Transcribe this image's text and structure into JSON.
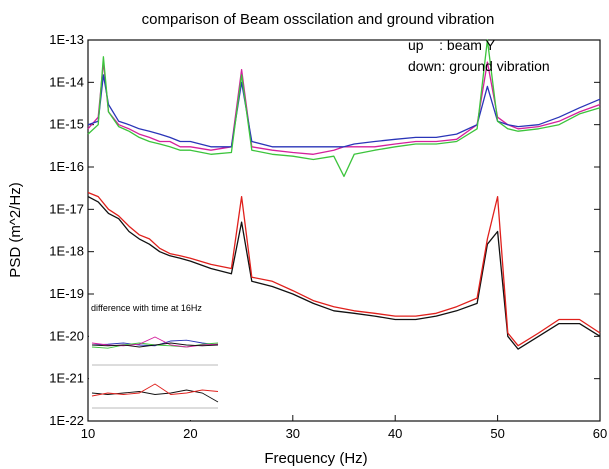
{
  "chart_data": {
    "type": "line",
    "title": "comparison of Beam osscilation and ground vibration",
    "xlabel": "Frequency (Hz)",
    "ylabel": "PSD (m^2/Hz)",
    "xlim": [
      10,
      60
    ],
    "ylim_log10": [
      -22,
      -13
    ],
    "y_scale": "log",
    "x_ticks": [
      10,
      20,
      30,
      40,
      50,
      60
    ],
    "x_tick_labels": [
      "10",
      "20",
      "30",
      "40",
      "50",
      "60"
    ],
    "y_tick_labels": [
      "1E-22",
      "1E-21",
      "1E-20",
      "1E-19",
      "1E-18",
      "1E-17",
      "1E-16",
      "1E-15",
      "1E-14",
      "1E-13"
    ],
    "legend_notes": [
      "up    : beam Y",
      "down: ground vibration"
    ],
    "grid": false,
    "series": [
      {
        "color": "#d4209c",
        "group": "up",
        "x": [
          10,
          11,
          11.5,
          12,
          13,
          14,
          15,
          16,
          17,
          18,
          19,
          20,
          22,
          24,
          25,
          26,
          28,
          30,
          32,
          34,
          35,
          36,
          38,
          40,
          42,
          44,
          46,
          48,
          49,
          50,
          51,
          52,
          54,
          56,
          58,
          60
        ],
        "y": [
          8e-16,
          1.5e-15,
          3e-14,
          2e-15,
          1e-15,
          8e-16,
          6e-16,
          5e-16,
          4e-16,
          4e-16,
          3e-16,
          3e-16,
          2.5e-16,
          3e-16,
          2e-14,
          3e-16,
          2.5e-16,
          2.2e-16,
          2e-16,
          2.5e-16,
          3e-16,
          3e-16,
          3e-16,
          3.5e-16,
          4e-16,
          4e-16,
          4.5e-16,
          1e-15,
          3e-14,
          1.5e-15,
          1e-15,
          8e-16,
          9e-16,
          1.2e-15,
          2e-15,
          3e-15
        ]
      },
      {
        "color": "#2a35b8",
        "group": "up",
        "x": [
          10,
          11,
          11.5,
          12,
          13,
          14,
          15,
          16,
          17,
          18,
          19,
          20,
          22,
          24,
          25,
          26,
          28,
          30,
          32,
          34,
          35,
          36,
          38,
          40,
          42,
          44,
          46,
          48,
          49,
          50,
          51,
          52,
          54,
          56,
          58,
          60
        ],
        "y": [
          1e-15,
          1.2e-15,
          1.5e-14,
          3e-15,
          1.2e-15,
          1e-15,
          8e-16,
          7e-16,
          6e-16,
          5e-16,
          4e-16,
          4e-16,
          3e-16,
          3e-16,
          1e-14,
          4e-16,
          3e-16,
          3e-16,
          3e-16,
          3e-16,
          3e-16,
          3.5e-16,
          4e-16,
          4.5e-16,
          5e-16,
          5e-16,
          6e-16,
          1e-15,
          8e-15,
          1.2e-15,
          1e-15,
          9e-16,
          1e-15,
          1.5e-15,
          2.5e-15,
          4e-15
        ]
      },
      {
        "color": "#3cc43c",
        "group": "up",
        "x": [
          10,
          11,
          11.5,
          12,
          13,
          14,
          15,
          16,
          17,
          18,
          19,
          20,
          22,
          24,
          25,
          26,
          28,
          30,
          32,
          34,
          35,
          36,
          38,
          40,
          42,
          44,
          46,
          48,
          49,
          50,
          51,
          52,
          54,
          56,
          58,
          60
        ],
        "y": [
          6e-16,
          1e-15,
          4e-14,
          2e-15,
          9e-16,
          7e-16,
          5e-16,
          4e-16,
          3.5e-16,
          3e-16,
          2.5e-16,
          2.5e-16,
          2e-16,
          2.2e-16,
          1.5e-14,
          2.5e-16,
          2e-16,
          1.8e-16,
          1.5e-16,
          1.8e-16,
          6e-17,
          2e-16,
          2.5e-16,
          3e-16,
          3.5e-16,
          3.5e-16,
          4e-16,
          8e-16,
          1e-13,
          1.2e-15,
          8e-16,
          7e-16,
          8e-16,
          1e-15,
          1.8e-15,
          2.5e-15
        ]
      },
      {
        "color": "#111111",
        "group": "down",
        "x": [
          10,
          11,
          12,
          13,
          14,
          15,
          16,
          17,
          18,
          19,
          20,
          22,
          24,
          25,
          26,
          28,
          30,
          32,
          34,
          36,
          38,
          40,
          42,
          44,
          46,
          48,
          49,
          50,
          51,
          52,
          54,
          56,
          58,
          60
        ],
        "y": [
          2e-17,
          1.5e-17,
          8e-18,
          6e-18,
          3e-18,
          2e-18,
          1.5e-18,
          1e-18,
          8e-19,
          7e-19,
          6e-19,
          4e-19,
          3e-19,
          5e-18,
          2e-19,
          1.5e-19,
          1e-19,
          6e-20,
          4e-20,
          3.5e-20,
          3e-20,
          2.5e-20,
          2.5e-20,
          3e-20,
          4e-20,
          6e-20,
          1.5e-18,
          3e-18,
          1e-20,
          5e-21,
          1e-20,
          2e-20,
          2e-20,
          1e-20
        ]
      },
      {
        "color": "#e0201c",
        "group": "down",
        "x": [
          10,
          11,
          12,
          13,
          14,
          15,
          16,
          17,
          18,
          19,
          20,
          22,
          24,
          25,
          26,
          28,
          30,
          32,
          34,
          36,
          38,
          40,
          42,
          44,
          46,
          48,
          49,
          50,
          51,
          52,
          54,
          56,
          58,
          60
        ],
        "y": [
          2.5e-17,
          2e-17,
          1e-17,
          7e-18,
          4e-18,
          2.5e-18,
          2e-18,
          1.2e-18,
          9e-19,
          8e-19,
          7e-19,
          5e-19,
          4e-19,
          2e-17,
          2.5e-19,
          2e-19,
          1.2e-19,
          7e-20,
          5e-20,
          4e-20,
          3.5e-20,
          3e-20,
          3e-20,
          3.5e-20,
          5e-20,
          8e-20,
          2e-18,
          2e-17,
          1.2e-20,
          6e-21,
          1.2e-20,
          2.5e-20,
          2.5e-20,
          1.2e-20
        ]
      }
    ],
    "inset": {
      "title": "difference with time at 16Hz",
      "upper_series": [
        {
          "color": "#2a35b8",
          "y": [
            0.5,
            0.52,
            0.55,
            0.5,
            0.48,
            0.6,
            0.62,
            0.55,
            0.5
          ]
        },
        {
          "color": "#3cc43c",
          "y": [
            0.45,
            0.42,
            0.5,
            0.55,
            0.5,
            0.48,
            0.45,
            0.52,
            0.55
          ]
        },
        {
          "color": "#d4209c",
          "y": [
            0.55,
            0.5,
            0.48,
            0.52,
            0.7,
            0.5,
            0.45,
            0.5,
            0.52
          ]
        },
        {
          "color": "#111111",
          "y": [
            0.5,
            0.48,
            0.5,
            0.45,
            0.5,
            0.55,
            0.5,
            0.48,
            0.5
          ]
        }
      ],
      "lower_series": [
        {
          "color": "#111111",
          "y": [
            0.5,
            0.45,
            0.5,
            0.55,
            0.45,
            0.5,
            0.6,
            0.5,
            0.2
          ]
        },
        {
          "color": "#e0201c",
          "y": [
            0.4,
            0.5,
            0.45,
            0.5,
            0.8,
            0.45,
            0.5,
            0.6,
            0.55
          ]
        }
      ]
    }
  }
}
